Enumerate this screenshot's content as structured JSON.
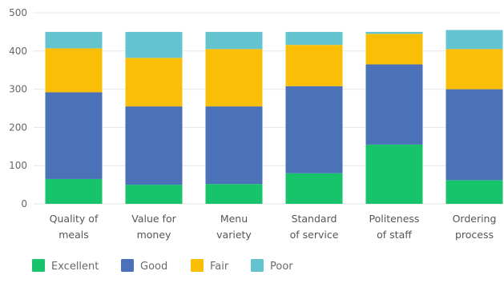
{
  "chart_data": {
    "type": "bar",
    "stacked": true,
    "categories": [
      [
        "Quality of",
        "meals"
      ],
      [
        "Value for",
        "money"
      ],
      [
        "Menu",
        "variety"
      ],
      [
        "Standard",
        "of service"
      ],
      [
        "Politeness",
        "of staff"
      ],
      [
        "Ordering",
        "process"
      ]
    ],
    "series": [
      {
        "name": "Excellent",
        "color": "#17c36b",
        "values": [
          65,
          50,
          52,
          80,
          155,
          62
        ]
      },
      {
        "name": "Good",
        "color": "#4b72b8",
        "values": [
          227,
          205,
          203,
          228,
          210,
          238
        ]
      },
      {
        "name": "Fair",
        "color": "#fbbe07",
        "values": [
          115,
          127,
          150,
          108,
          80,
          105
        ]
      },
      {
        "name": "Poor",
        "color": "#63c4cf",
        "values": [
          43,
          68,
          45,
          34,
          5,
          50
        ]
      }
    ],
    "ylim": [
      0,
      500
    ],
    "yticks": [
      "0",
      "100",
      "200",
      "300",
      "400",
      "500"
    ],
    "grid": true,
    "legend_position": "bottom-left"
  }
}
